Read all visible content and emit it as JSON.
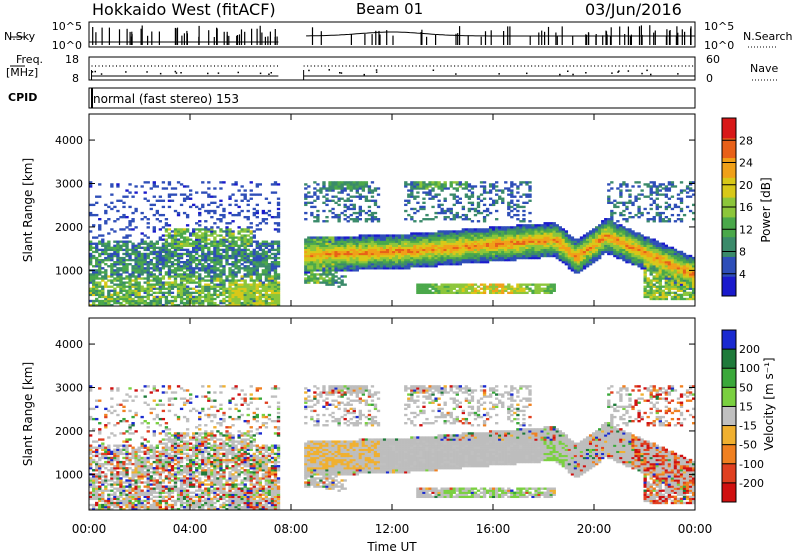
{
  "header": {
    "title": "Hokkaido West (fitACF)",
    "beam": "Beam 01",
    "date": "03/Jun/2016"
  },
  "status_panels": {
    "nsky_label": "N.Sky",
    "nsky_axis": [
      "10^5",
      "10^0"
    ],
    "nsearch_label": "N.Search",
    "nsearch_axis": [
      "10^5",
      "10^0"
    ],
    "freq_label": "Freq.",
    "freq_unit": "[MHz]",
    "freq_axis": [
      "18",
      "8"
    ],
    "nave_label": "Nave",
    "nave_axis": [
      "60",
      "0"
    ],
    "cpid_label": "CPID",
    "cpid_text": "normal (fast stereo) 153"
  },
  "chart_data": [
    {
      "type": "heatmap",
      "name": "power",
      "ylabel": "Slant Range [km]",
      "xlabel": "",
      "yticks": [
        "1000",
        "2000",
        "3000",
        "4000"
      ],
      "ylim": [
        180,
        4600
      ],
      "colorbar_label": "Power [dB]",
      "colorbar_ticks": [
        "4",
        "8",
        "12",
        "16",
        "20",
        "24",
        "28"
      ],
      "colorbar_range": [
        0,
        32
      ],
      "colors": [
        "#1a1acc",
        "#2e4eb8",
        "#3a8a6a",
        "#4aa84a",
        "#8cc63a",
        "#d8c818",
        "#f0a018",
        "#e86018",
        "#d81818"
      ],
      "data_gap_utc": [
        7.5,
        8.5
      ]
    },
    {
      "type": "heatmap",
      "name": "velocity",
      "ylabel": "Slant Range [km]",
      "xlabel": "Time UT",
      "yticks": [
        "1000",
        "2000",
        "3000",
        "4000"
      ],
      "ylim": [
        180,
        4600
      ],
      "colorbar_label": "Velocity [m s⁻¹]",
      "colorbar_ticks": [
        "200",
        "100",
        "50",
        "15",
        "-15",
        "-50",
        "-100",
        "-200"
      ],
      "colors": [
        "#1a2ad0",
        "#1e7a3a",
        "#3aa83a",
        "#7ad040",
        "#c0c0c0",
        "#f0b030",
        "#f08020",
        "#e04020",
        "#d01010"
      ],
      "ground_scatter_color": "#bdbdbd",
      "xticks": [
        "00:00",
        "04:00",
        "08:00",
        "12:00",
        "16:00",
        "20:00",
        "00:00"
      ],
      "xlim_hours": [
        0,
        24
      ]
    }
  ]
}
